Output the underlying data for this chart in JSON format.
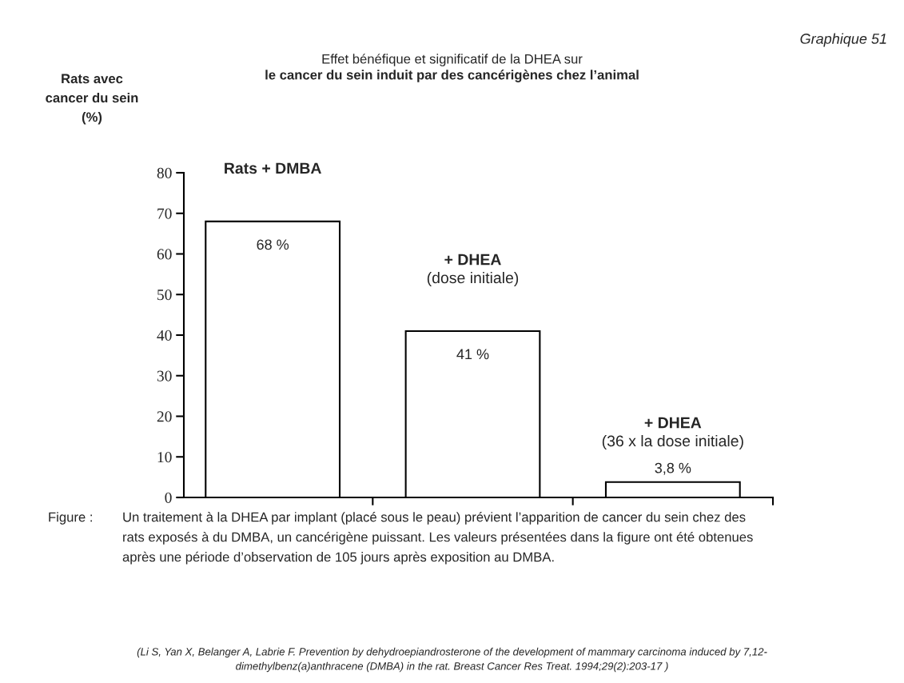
{
  "chart_data": {
    "type": "bar",
    "title": "Effet bénéfique et significatif de la DHEA sur\nle cancer du sein induit par des cancérigènes chez l’animal",
    "subtitle": "Graphique 51",
    "ylabel": "Rats avec\ncancer du sein\n(%)",
    "categories": [
      "Rats + DMBA",
      "+ DHEA\n(dose initiale)",
      "+ DHEA\n(36 x la dose initiale)"
    ],
    "values": [
      68,
      41,
      3.8
    ],
    "value_labels": [
      "68 %",
      "41 %",
      "3,8 %"
    ],
    "color": "#ffffff",
    "ylim": [
      0,
      80
    ],
    "yticks": [
      0,
      10,
      20,
      30,
      40,
      50,
      60,
      70,
      80
    ],
    "grid": false,
    "legend": false,
    "annotations": [
      "Figure :",
      "Un traitement à la DHEA par implant (placé sous le peau) prévient l’apparition de cancer du sein chez des\nrats exposés à du DMBA, un cancérigène puissant. Les valeurs présentées dans la figure ont été obtenues\naprès une période d’observation de 105 jours après exposition au DMBA.",
      "(Li S, Yan X, Belanger A, Labrie F. Prevention by dehydroepiandrosterone of the development of mammary carcinoma induced by 7,12-\ndimethylbenz(a)anthracene (DMBA) in the rat. Breast Cancer Res Treat. 1994;29(2):203-17 )"
    ]
  }
}
